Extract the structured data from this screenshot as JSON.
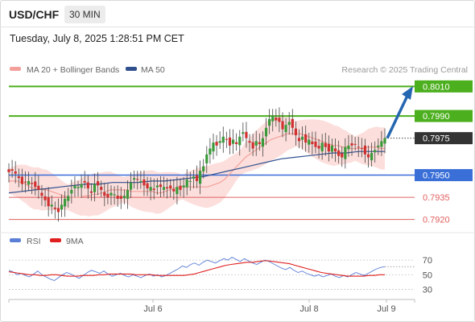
{
  "header": {
    "symbol": "USD/CHF",
    "timeframe": "30 MIN",
    "datetime": "Tuesday, July 8, 2025 1:28:51 PM CET"
  },
  "legend": {
    "ma20": {
      "label": "MA 20 + Bollinger Bands",
      "color": "#f4a09a"
    },
    "ma50": {
      "label": "MA 50",
      "color": "#2f4f8f"
    },
    "source": "Research © 2025 Trading Central"
  },
  "rsi_legend": {
    "rsi": {
      "label": "RSI",
      "color": "#5b7fd6"
    },
    "ma9": {
      "label": "9MA",
      "color": "#e02020"
    }
  },
  "colors": {
    "up": "#3a9a3a",
    "down": "#d03030",
    "wick": "#444444",
    "target": "#4caf1e",
    "pivot": "#3a6fd8",
    "support": "#e06060",
    "arrow": "#2566b0"
  },
  "chart_data": [
    {
      "type": "candlestick",
      "title": "USD/CHF 30 MIN",
      "x_ticks": [
        "Jul 6",
        "Jul 8",
        "Jul 9"
      ],
      "ylim": [
        0.7916,
        0.8014
      ],
      "current_price": "0.7975",
      "levels": [
        {
          "value": 0.801,
          "label": "0.8010",
          "kind": "target"
        },
        {
          "value": 0.799,
          "label": "0.7990",
          "kind": "target"
        },
        {
          "value": 0.795,
          "label": "0.7950",
          "kind": "pivot"
        },
        {
          "value": 0.7935,
          "label": "0.7935",
          "kind": "support"
        },
        {
          "value": 0.792,
          "label": "0.7920",
          "kind": "support"
        }
      ],
      "forecast_arrow": {
        "from": 0.7975,
        "to": 0.8008
      },
      "close_series": [
        0.7952,
        0.7953,
        0.7951,
        0.7948,
        0.7944,
        0.7945,
        0.7946,
        0.7944,
        0.7942,
        0.794,
        0.7936,
        0.7933,
        0.7929,
        0.793,
        0.7927,
        0.7925,
        0.793,
        0.7934,
        0.7936,
        0.794,
        0.7943,
        0.7942,
        0.7944,
        0.7945,
        0.7941,
        0.7938,
        0.7944,
        0.7943,
        0.794,
        0.7936,
        0.7935,
        0.7938,
        0.7937,
        0.7934,
        0.7934,
        0.7936,
        0.794,
        0.7945,
        0.7948,
        0.7947,
        0.7946,
        0.7943,
        0.7941,
        0.7942,
        0.794,
        0.7943,
        0.7942,
        0.7942,
        0.7941,
        0.7941,
        0.7939,
        0.7942,
        0.794,
        0.7943,
        0.7947,
        0.7946,
        0.7949,
        0.7946,
        0.7953,
        0.7956,
        0.7964,
        0.7968,
        0.7972,
        0.797,
        0.7973,
        0.7976,
        0.7974,
        0.797,
        0.7974,
        0.7971,
        0.7976,
        0.7979,
        0.7975,
        0.7972,
        0.7968,
        0.7973,
        0.7971,
        0.7975,
        0.7982,
        0.7988,
        0.799,
        0.7987,
        0.7986,
        0.7981,
        0.7984,
        0.7986,
        0.7982,
        0.7977,
        0.7973,
        0.7976,
        0.7972,
        0.7974,
        0.7971,
        0.7969,
        0.7968,
        0.7972,
        0.7969,
        0.7966,
        0.797,
        0.7966,
        0.7963,
        0.7962,
        0.7969,
        0.797,
        0.797,
        0.7971,
        0.7969,
        0.7968,
        0.7964,
        0.7962,
        0.7965,
        0.7967,
        0.797,
        0.7973,
        0.7975
      ],
      "ma20_series": [
        0.7946,
        0.7946,
        0.7946,
        0.7945,
        0.7944,
        0.7942,
        0.7941,
        0.7941,
        0.794,
        0.794,
        0.7939,
        0.7938,
        0.7937,
        0.7936,
        0.7935,
        0.7935,
        0.7935,
        0.7935,
        0.7936,
        0.7936,
        0.7937,
        0.7937,
        0.7938,
        0.7939,
        0.794,
        0.794,
        0.794,
        0.794,
        0.794,
        0.7939,
        0.7939,
        0.7939,
        0.7939,
        0.7939,
        0.7939,
        0.7938,
        0.7938,
        0.7939,
        0.794,
        0.7941,
        0.7942,
        0.7942,
        0.7942,
        0.7942,
        0.7942,
        0.7942,
        0.7942,
        0.7942,
        0.7943,
        0.7944,
        0.7945,
        0.7947,
        0.795,
        0.7953,
        0.7956,
        0.7959,
        0.7962,
        0.7964,
        0.7966,
        0.7968,
        0.797,
        0.7972,
        0.7974,
        0.7975,
        0.7976,
        0.7977,
        0.7978,
        0.7978,
        0.7978,
        0.7978,
        0.7977,
        0.7976,
        0.7975,
        0.7974,
        0.7973,
        0.7972,
        0.7971,
        0.797,
        0.797,
        0.7969,
        0.7969,
        0.7968,
        0.7968,
        0.7968,
        0.7968,
        0.7969,
        0.7969,
        0.7969,
        0.7968,
        0.7968
      ],
      "ma50_series": [
        0.7938,
        0.7939,
        0.794,
        0.7941,
        0.7942,
        0.7943,
        0.7944,
        0.7944,
        0.7945,
        0.7945,
        0.7945,
        0.7946,
        0.7946,
        0.7947,
        0.7948,
        0.7949,
        0.7951,
        0.7953,
        0.7955,
        0.7957,
        0.7959,
        0.7961,
        0.7962,
        0.7963,
        0.7964,
        0.7965,
        0.7965,
        0.7966,
        0.7966,
        0.7966
      ],
      "bollinger_width": 0.0011
    },
    {
      "type": "line",
      "title": "RSI",
      "y_ticks": [
        "70",
        "50",
        "30"
      ],
      "ylim": [
        25,
        80
      ],
      "series": [
        {
          "name": "RSI",
          "values": [
            56,
            54,
            50,
            52,
            49,
            47,
            51,
            55,
            50,
            47,
            44,
            42,
            46,
            50,
            53,
            51,
            48,
            45,
            49,
            53,
            56,
            54,
            52,
            55,
            51,
            48,
            50,
            52,
            49,
            47,
            50,
            48,
            46,
            49,
            51,
            48,
            50,
            47,
            49,
            52,
            55,
            58,
            62,
            60,
            64,
            66,
            63,
            67,
            70,
            68,
            66,
            69,
            72,
            70,
            74,
            71,
            68,
            72,
            69,
            66,
            64,
            67,
            70,
            68,
            65,
            62,
            59,
            57,
            60,
            56,
            53,
            55,
            52,
            50,
            48,
            50,
            47,
            49,
            51,
            48,
            46,
            49,
            47,
            50,
            53,
            51,
            49,
            52,
            55,
            58,
            60,
            61
          ]
        },
        {
          "name": "9MA",
          "values": [
            54,
            53,
            52,
            51,
            50,
            50,
            49,
            49,
            50,
            50,
            49,
            48,
            48,
            48,
            49,
            49,
            49,
            50,
            50,
            51,
            51,
            51,
            51,
            51,
            50,
            50,
            50,
            50,
            49,
            49,
            49,
            49,
            49,
            49,
            50,
            51,
            53,
            55,
            57,
            59,
            61,
            63,
            64,
            65,
            66,
            67,
            67,
            68,
            69,
            69,
            68,
            67,
            66,
            65,
            63,
            61,
            59,
            57,
            55,
            53,
            52,
            51,
            50,
            49,
            48,
            48,
            48,
            48,
            49,
            49,
            50,
            50
          ]
        }
      ]
    }
  ]
}
